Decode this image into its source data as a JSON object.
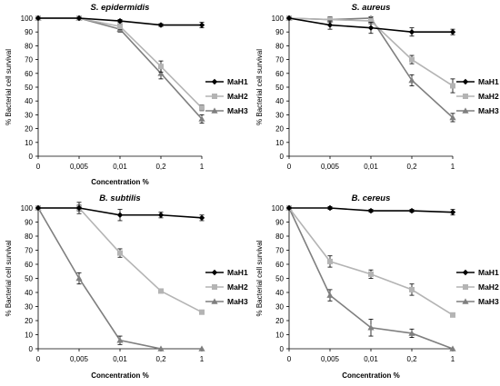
{
  "chart_data": [
    {
      "type": "line",
      "title": "S. epidermidis",
      "xlabel": "Concentration %",
      "ylabel": "% Bacterial cell survival",
      "categories": [
        "0",
        "0,005",
        "0,01",
        "0,2",
        "1"
      ],
      "yticks": [
        0,
        10,
        20,
        30,
        40,
        50,
        60,
        70,
        80,
        90,
        100
      ],
      "ylim": [
        0,
        100
      ],
      "legend": "right",
      "series": [
        {
          "name": "MaH1",
          "color": "#000000",
          "marker": "diamond",
          "values": [
            100,
            100,
            98,
            95,
            95
          ],
          "errors": [
            0,
            0,
            1,
            1,
            2
          ]
        },
        {
          "name": "MaH2",
          "color": "#b4b4b4",
          "marker": "square",
          "values": [
            100,
            100,
            94,
            65,
            35
          ],
          "errors": [
            0,
            0,
            2,
            4,
            2
          ]
        },
        {
          "name": "MaH3",
          "color": "#7f7f7f",
          "marker": "triangle",
          "values": [
            100,
            100,
            92,
            60,
            27
          ],
          "errors": [
            0,
            0,
            2,
            4,
            3
          ]
        }
      ]
    },
    {
      "type": "line",
      "title": "S. aureus",
      "xlabel": "",
      "ylabel": "% Bacterial cell survival",
      "categories": [
        "0",
        "0,005",
        "0,01",
        "0,2",
        "1"
      ],
      "yticks": [
        0,
        10,
        20,
        30,
        40,
        50,
        60,
        70,
        80,
        90,
        100
      ],
      "ylim": [
        0,
        100
      ],
      "legend": "right",
      "series": [
        {
          "name": "MaH1",
          "color": "#000000",
          "marker": "diamond",
          "values": [
            100,
            95,
            93,
            90,
            90
          ],
          "errors": [
            0,
            3,
            4,
            3,
            2
          ]
        },
        {
          "name": "MaH2",
          "color": "#b4b4b4",
          "marker": "square",
          "values": [
            100,
            99,
            98,
            70,
            51
          ],
          "errors": [
            0,
            2,
            2,
            3,
            5
          ]
        },
        {
          "name": "MaH3",
          "color": "#7f7f7f",
          "marker": "triangle",
          "values": [
            100,
            99,
            100,
            55,
            28
          ],
          "errors": [
            0,
            1,
            1,
            4,
            3
          ]
        }
      ]
    },
    {
      "type": "line",
      "title": "B. subtilis",
      "xlabel": "Concentration %",
      "ylabel": "% Bacterial cell survival",
      "categories": [
        "0",
        "0,005",
        "0,01",
        "0,2",
        "1"
      ],
      "yticks": [
        0,
        10,
        20,
        30,
        40,
        50,
        60,
        70,
        80,
        90,
        100
      ],
      "ylim": [
        0,
        100
      ],
      "legend": "right",
      "series": [
        {
          "name": "MaH1",
          "color": "#000000",
          "marker": "diamond",
          "values": [
            100,
            100,
            95,
            95,
            93
          ],
          "errors": [
            0,
            4,
            4,
            2,
            2
          ]
        },
        {
          "name": "MaH2",
          "color": "#b4b4b4",
          "marker": "square",
          "values": [
            100,
            100,
            68,
            41,
            26
          ],
          "errors": [
            0,
            2,
            3,
            1,
            1
          ]
        },
        {
          "name": "MaH3",
          "color": "#7f7f7f",
          "marker": "triangle",
          "values": [
            100,
            50,
            6,
            0,
            0
          ],
          "errors": [
            0,
            4,
            3,
            0,
            0
          ]
        }
      ]
    },
    {
      "type": "line",
      "title": "B. cereus",
      "xlabel": "Concentration %",
      "ylabel": "% Bacterial cell survival",
      "categories": [
        "0",
        "0,005",
        "0,01",
        "0,2",
        "1"
      ],
      "yticks": [
        0,
        10,
        20,
        30,
        40,
        50,
        60,
        70,
        80,
        90,
        100
      ],
      "ylim": [
        0,
        100
      ],
      "legend": "right",
      "series": [
        {
          "name": "MaH1",
          "color": "#000000",
          "marker": "diamond",
          "values": [
            100,
            100,
            98,
            98,
            97
          ],
          "errors": [
            0,
            1,
            1,
            1,
            2
          ]
        },
        {
          "name": "MaH2",
          "color": "#b4b4b4",
          "marker": "square",
          "values": [
            100,
            62,
            53,
            42,
            24
          ],
          "errors": [
            0,
            4,
            3,
            4,
            1
          ]
        },
        {
          "name": "MaH3",
          "color": "#7f7f7f",
          "marker": "triangle",
          "values": [
            100,
            38,
            15,
            11,
            0
          ],
          "errors": [
            0,
            4,
            6,
            3,
            0
          ]
        }
      ]
    }
  ]
}
